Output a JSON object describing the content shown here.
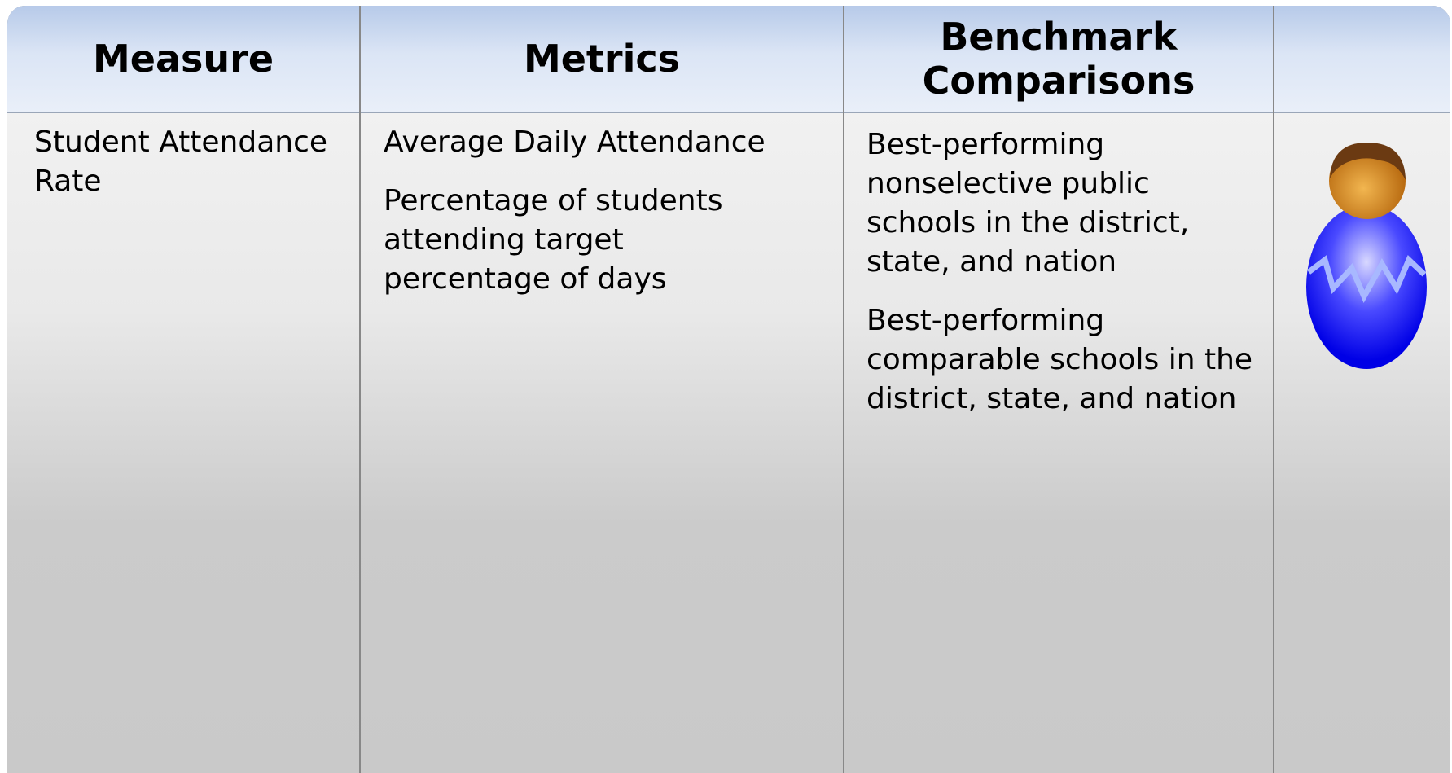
{
  "table": {
    "header": [
      "Measure",
      "Metrics",
      "Benchmark Comparisons"
    ],
    "rows": [
      {
        "measure": "Student Attendance Rate",
        "metrics": [
          "Average Daily Attendance",
          "Percentage of students attending target percentage of days"
        ],
        "benchmarks": [
          "Best-performing nonselective public schools in the district, state, and nation",
          "Best-performing comparable schools in the district, state, and nation"
        ]
      }
    ]
  }
}
